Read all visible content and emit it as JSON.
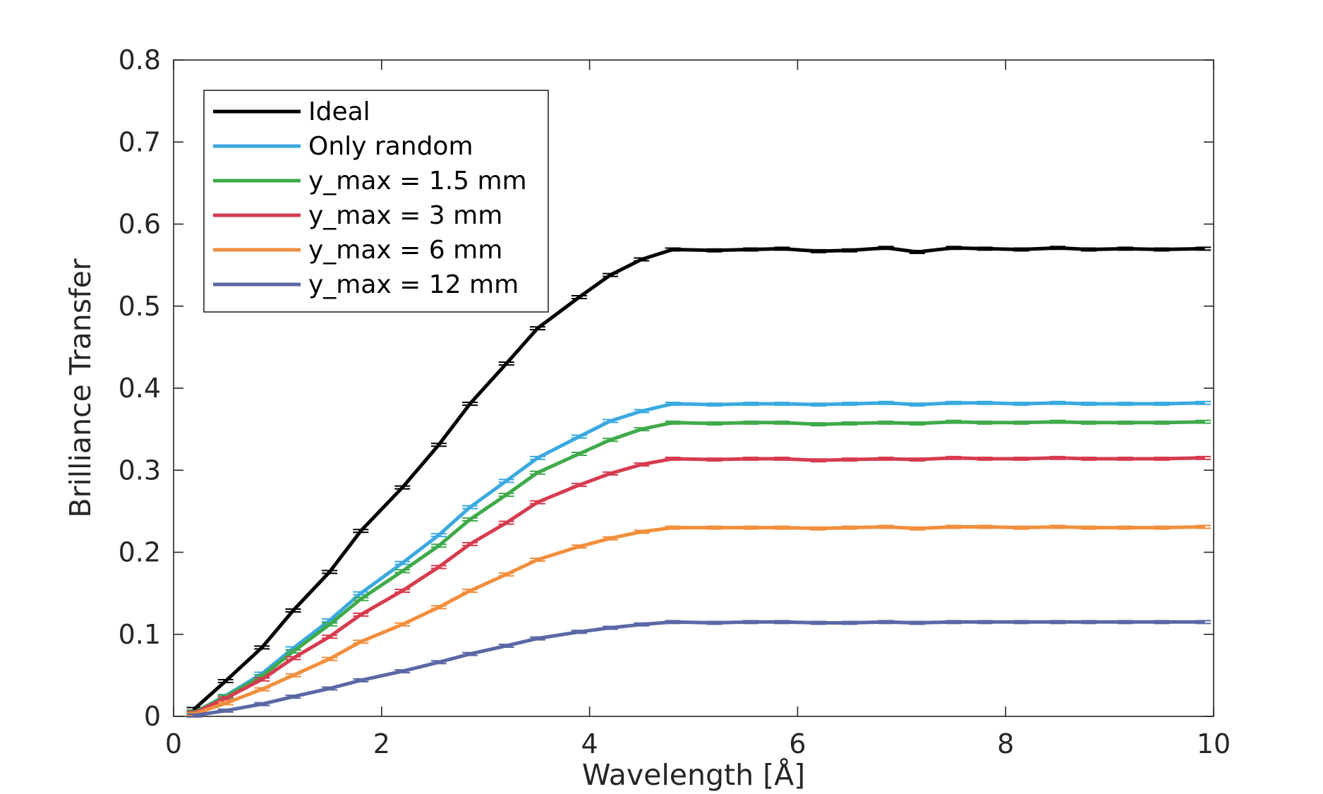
{
  "chart_data": {
    "type": "line",
    "title": "",
    "xlabel": "Wavelength [Å]",
    "ylabel": "Brilliance Transfer",
    "xlim": [
      0,
      10
    ],
    "ylim": [
      0,
      0.8
    ],
    "xticks": [
      0,
      2,
      4,
      6,
      8,
      10
    ],
    "xtick_labels": [
      "0",
      "2",
      "4",
      "6",
      "8",
      "10"
    ],
    "yticks": [
      0,
      0.1,
      0.2,
      0.3,
      0.4,
      0.5,
      0.6,
      0.7,
      0.8
    ],
    "ytick_labels": [
      "0",
      "0.1",
      "0.2",
      "0.3",
      "0.4",
      "0.5",
      "0.6",
      "0.7",
      "0.8"
    ],
    "grid": false,
    "legend_position": "top-left",
    "error_bars": true,
    "x": [
      0.2,
      0.5,
      0.85,
      1.15,
      1.5,
      1.8,
      2.2,
      2.55,
      2.85,
      3.2,
      3.5,
      3.9,
      4.2,
      4.5,
      4.8,
      5.2,
      5.55,
      5.85,
      6.2,
      6.5,
      6.85,
      7.15,
      7.5,
      7.8,
      8.15,
      8.5,
      8.8,
      9.15,
      9.5,
      9.9
    ],
    "series": [
      {
        "name": "Ideal",
        "color": "#000000",
        "values": [
          0.009,
          0.043,
          0.084,
          0.129,
          0.176,
          0.226,
          0.279,
          0.331,
          0.381,
          0.43,
          0.473,
          0.511,
          0.538,
          0.557,
          0.569,
          0.568,
          0.569,
          0.57,
          0.567,
          0.568,
          0.571,
          0.566,
          0.571,
          0.57,
          0.569,
          0.571,
          0.569,
          0.57,
          0.569,
          0.57
        ]
      },
      {
        "name": "Only random",
        "color": "#3aa9e0",
        "values": [
          0.005,
          0.025,
          0.052,
          0.083,
          0.117,
          0.15,
          0.187,
          0.221,
          0.255,
          0.287,
          0.315,
          0.341,
          0.36,
          0.372,
          0.381,
          0.38,
          0.381,
          0.381,
          0.38,
          0.381,
          0.382,
          0.38,
          0.382,
          0.382,
          0.381,
          0.382,
          0.381,
          0.381,
          0.381,
          0.382
        ]
      },
      {
        "name": "y_max = 1.5 mm",
        "color": "#3faa4a",
        "values": [
          0.005,
          0.024,
          0.049,
          0.079,
          0.112,
          0.143,
          0.177,
          0.208,
          0.24,
          0.27,
          0.297,
          0.32,
          0.337,
          0.35,
          0.358,
          0.357,
          0.358,
          0.358,
          0.356,
          0.357,
          0.358,
          0.357,
          0.359,
          0.358,
          0.358,
          0.359,
          0.358,
          0.358,
          0.358,
          0.359
        ]
      },
      {
        "name": "y_max = 3 mm",
        "color": "#d73b4f",
        "values": [
          0.004,
          0.022,
          0.045,
          0.071,
          0.097,
          0.124,
          0.153,
          0.182,
          0.21,
          0.236,
          0.261,
          0.282,
          0.296,
          0.307,
          0.314,
          0.313,
          0.314,
          0.314,
          0.312,
          0.313,
          0.314,
          0.313,
          0.315,
          0.314,
          0.314,
          0.315,
          0.314,
          0.314,
          0.314,
          0.315
        ]
      },
      {
        "name": "y_max = 6 mm",
        "color": "#f28e3c",
        "values": [
          0.003,
          0.016,
          0.033,
          0.05,
          0.07,
          0.091,
          0.112,
          0.133,
          0.153,
          0.173,
          0.191,
          0.207,
          0.217,
          0.225,
          0.23,
          0.23,
          0.23,
          0.23,
          0.229,
          0.23,
          0.231,
          0.229,
          0.231,
          0.231,
          0.23,
          0.231,
          0.23,
          0.23,
          0.23,
          0.231
        ]
      },
      {
        "name": "y_max = 12 mm",
        "color": "#5b67a5",
        "values": [
          0.001,
          0.007,
          0.015,
          0.024,
          0.034,
          0.044,
          0.055,
          0.066,
          0.076,
          0.086,
          0.095,
          0.103,
          0.108,
          0.112,
          0.115,
          0.114,
          0.115,
          0.115,
          0.114,
          0.114,
          0.115,
          0.114,
          0.115,
          0.115,
          0.115,
          0.115,
          0.115,
          0.115,
          0.115,
          0.115
        ]
      }
    ]
  }
}
